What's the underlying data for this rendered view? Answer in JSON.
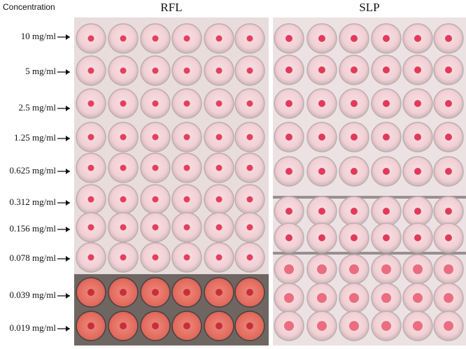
{
  "header": {
    "corner": "Concentration",
    "panels": [
      "RFL",
      "SLP"
    ]
  },
  "rows": [
    "10 mg/ml",
    "5 mg/ml",
    "2.5 mg/ml",
    "1.25 mg/ml",
    "0.625 mg/ml",
    "0.312 mg/ml",
    "0.156 mg/ml",
    "0.078 mg/ml",
    "0.039 mg/ml",
    "0.019 mg/ml"
  ]
}
